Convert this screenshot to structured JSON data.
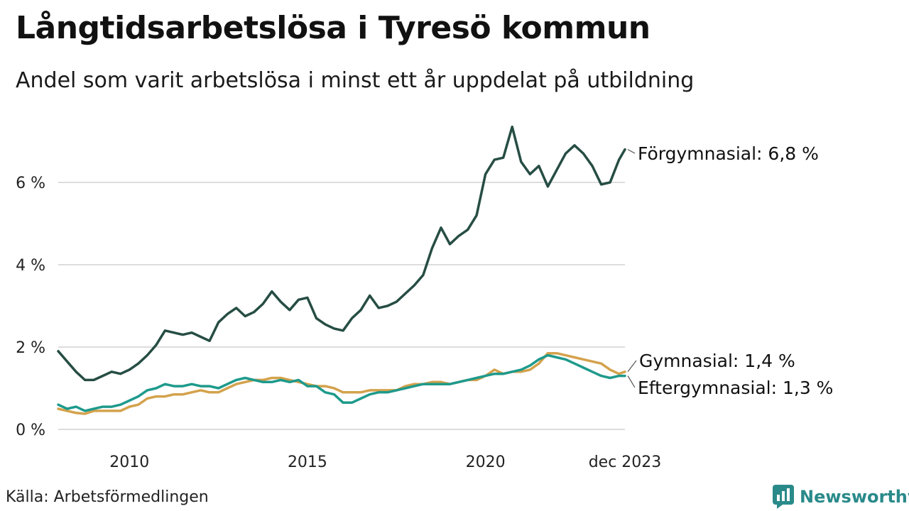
{
  "title": "Långtidsarbetslösa i Tyresö kommun",
  "subtitle": "Andel som varit arbetslösa i minst ett år uppdelat på utbildning",
  "source": "Källa: Arbetsförmedlingen",
  "brand": "Newsworthy",
  "colors": {
    "forgymnasial": "#264d44",
    "gymnasial": "#d4a24c",
    "eftergymnasial": "#1e9a8c",
    "grid": "#dddddd",
    "brand": "#2a8a8a"
  },
  "chart_data": {
    "type": "line",
    "title": "Långtidsarbetslösa i Tyresö kommun",
    "xlabel": "",
    "ylabel": "",
    "xlim": [
      2008.0,
      2023.917
    ],
    "ylim": [
      0,
      7.5
    ],
    "yticks": [
      {
        "value": 0,
        "label": "0 %"
      },
      {
        "value": 2,
        "label": "2 %"
      },
      {
        "value": 4,
        "label": "4 %"
      },
      {
        "value": 6,
        "label": "6 %"
      }
    ],
    "xticks": [
      {
        "value": 2010,
        "label": "2010"
      },
      {
        "value": 2015,
        "label": "2015"
      },
      {
        "value": 2020,
        "label": "2020"
      },
      {
        "value": 2023.917,
        "label": "dec 2023"
      }
    ],
    "series": [
      {
        "name": "Förgymnasial",
        "label": "Förgymnasial: 6,8 %",
        "color_key": "forgymnasial",
        "points": [
          [
            2008.0,
            1.9
          ],
          [
            2008.25,
            1.65
          ],
          [
            2008.5,
            1.4
          ],
          [
            2008.75,
            1.2
          ],
          [
            2009.0,
            1.2
          ],
          [
            2009.25,
            1.3
          ],
          [
            2009.5,
            1.4
          ],
          [
            2009.75,
            1.35
          ],
          [
            2010.0,
            1.45
          ],
          [
            2010.25,
            1.6
          ],
          [
            2010.5,
            1.8
          ],
          [
            2010.75,
            2.05
          ],
          [
            2011.0,
            2.4
          ],
          [
            2011.25,
            2.35
          ],
          [
            2011.5,
            2.3
          ],
          [
            2011.75,
            2.35
          ],
          [
            2012.0,
            2.25
          ],
          [
            2012.25,
            2.15
          ],
          [
            2012.5,
            2.6
          ],
          [
            2012.75,
            2.8
          ],
          [
            2013.0,
            2.95
          ],
          [
            2013.25,
            2.75
          ],
          [
            2013.5,
            2.85
          ],
          [
            2013.75,
            3.05
          ],
          [
            2014.0,
            3.35
          ],
          [
            2014.25,
            3.1
          ],
          [
            2014.5,
            2.9
          ],
          [
            2014.75,
            3.15
          ],
          [
            2015.0,
            3.2
          ],
          [
            2015.25,
            2.7
          ],
          [
            2015.5,
            2.55
          ],
          [
            2015.75,
            2.45
          ],
          [
            2016.0,
            2.4
          ],
          [
            2016.25,
            2.7
          ],
          [
            2016.5,
            2.9
          ],
          [
            2016.75,
            3.25
          ],
          [
            2017.0,
            2.95
          ],
          [
            2017.25,
            3.0
          ],
          [
            2017.5,
            3.1
          ],
          [
            2017.75,
            3.3
          ],
          [
            2018.0,
            3.5
          ],
          [
            2018.25,
            3.75
          ],
          [
            2018.5,
            4.4
          ],
          [
            2018.75,
            4.9
          ],
          [
            2019.0,
            4.5
          ],
          [
            2019.25,
            4.7
          ],
          [
            2019.5,
            4.85
          ],
          [
            2019.75,
            5.2
          ],
          [
            2020.0,
            6.2
          ],
          [
            2020.25,
            6.55
          ],
          [
            2020.5,
            6.6
          ],
          [
            2020.75,
            7.35
          ],
          [
            2021.0,
            6.5
          ],
          [
            2021.25,
            6.2
          ],
          [
            2021.5,
            6.4
          ],
          [
            2021.75,
            5.9
          ],
          [
            2022.0,
            6.3
          ],
          [
            2022.25,
            6.7
          ],
          [
            2022.5,
            6.9
          ],
          [
            2022.75,
            6.7
          ],
          [
            2023.0,
            6.4
          ],
          [
            2023.25,
            5.95
          ],
          [
            2023.5,
            6.0
          ],
          [
            2023.75,
            6.55
          ],
          [
            2023.917,
            6.8
          ]
        ]
      },
      {
        "name": "Gymnasial",
        "label": "Gymnasial: 1,4 %",
        "color_key": "gymnasial",
        "points": [
          [
            2008.0,
            0.5
          ],
          [
            2008.25,
            0.45
          ],
          [
            2008.5,
            0.4
          ],
          [
            2008.75,
            0.38
          ],
          [
            2009.0,
            0.45
          ],
          [
            2009.25,
            0.45
          ],
          [
            2009.5,
            0.45
          ],
          [
            2009.75,
            0.45
          ],
          [
            2010.0,
            0.55
          ],
          [
            2010.25,
            0.6
          ],
          [
            2010.5,
            0.75
          ],
          [
            2010.75,
            0.8
          ],
          [
            2011.0,
            0.8
          ],
          [
            2011.25,
            0.85
          ],
          [
            2011.5,
            0.85
          ],
          [
            2011.75,
            0.9
          ],
          [
            2012.0,
            0.95
          ],
          [
            2012.25,
            0.9
          ],
          [
            2012.5,
            0.9
          ],
          [
            2012.75,
            1.0
          ],
          [
            2013.0,
            1.1
          ],
          [
            2013.25,
            1.15
          ],
          [
            2013.5,
            1.2
          ],
          [
            2013.75,
            1.2
          ],
          [
            2014.0,
            1.25
          ],
          [
            2014.25,
            1.25
          ],
          [
            2014.5,
            1.2
          ],
          [
            2014.75,
            1.15
          ],
          [
            2015.0,
            1.1
          ],
          [
            2015.25,
            1.05
          ],
          [
            2015.5,
            1.05
          ],
          [
            2015.75,
            1.0
          ],
          [
            2016.0,
            0.9
          ],
          [
            2016.25,
            0.9
          ],
          [
            2016.5,
            0.9
          ],
          [
            2016.75,
            0.95
          ],
          [
            2017.0,
            0.95
          ],
          [
            2017.25,
            0.95
          ],
          [
            2017.5,
            0.95
          ],
          [
            2017.75,
            1.05
          ],
          [
            2018.0,
            1.1
          ],
          [
            2018.25,
            1.1
          ],
          [
            2018.5,
            1.15
          ],
          [
            2018.75,
            1.15
          ],
          [
            2019.0,
            1.1
          ],
          [
            2019.25,
            1.15
          ],
          [
            2019.5,
            1.2
          ],
          [
            2019.75,
            1.2
          ],
          [
            2020.0,
            1.3
          ],
          [
            2020.25,
            1.45
          ],
          [
            2020.5,
            1.35
          ],
          [
            2020.75,
            1.4
          ],
          [
            2021.0,
            1.4
          ],
          [
            2021.25,
            1.45
          ],
          [
            2021.5,
            1.6
          ],
          [
            2021.75,
            1.85
          ],
          [
            2022.0,
            1.85
          ],
          [
            2022.25,
            1.8
          ],
          [
            2022.5,
            1.75
          ],
          [
            2022.75,
            1.7
          ],
          [
            2023.0,
            1.65
          ],
          [
            2023.25,
            1.6
          ],
          [
            2023.5,
            1.45
          ],
          [
            2023.75,
            1.35
          ],
          [
            2023.917,
            1.4
          ]
        ]
      },
      {
        "name": "Eftergymnasial",
        "label": "Eftergymnasial: 1,3 %",
        "color_key": "eftergymnasial",
        "points": [
          [
            2008.0,
            0.6
          ],
          [
            2008.25,
            0.5
          ],
          [
            2008.5,
            0.55
          ],
          [
            2008.75,
            0.45
          ],
          [
            2009.0,
            0.5
          ],
          [
            2009.25,
            0.55
          ],
          [
            2009.5,
            0.55
          ],
          [
            2009.75,
            0.6
          ],
          [
            2010.0,
            0.7
          ],
          [
            2010.25,
            0.8
          ],
          [
            2010.5,
            0.95
          ],
          [
            2010.75,
            1.0
          ],
          [
            2011.0,
            1.1
          ],
          [
            2011.25,
            1.05
          ],
          [
            2011.5,
            1.05
          ],
          [
            2011.75,
            1.1
          ],
          [
            2012.0,
            1.05
          ],
          [
            2012.25,
            1.05
          ],
          [
            2012.5,
            1.0
          ],
          [
            2012.75,
            1.1
          ],
          [
            2013.0,
            1.2
          ],
          [
            2013.25,
            1.25
          ],
          [
            2013.5,
            1.2
          ],
          [
            2013.75,
            1.15
          ],
          [
            2014.0,
            1.15
          ],
          [
            2014.25,
            1.2
          ],
          [
            2014.5,
            1.15
          ],
          [
            2014.75,
            1.2
          ],
          [
            2015.0,
            1.05
          ],
          [
            2015.25,
            1.05
          ],
          [
            2015.5,
            0.9
          ],
          [
            2015.75,
            0.85
          ],
          [
            2016.0,
            0.65
          ],
          [
            2016.25,
            0.65
          ],
          [
            2016.5,
            0.75
          ],
          [
            2016.75,
            0.85
          ],
          [
            2017.0,
            0.9
          ],
          [
            2017.25,
            0.9
          ],
          [
            2017.5,
            0.95
          ],
          [
            2017.75,
            1.0
          ],
          [
            2018.0,
            1.05
          ],
          [
            2018.25,
            1.1
          ],
          [
            2018.5,
            1.1
          ],
          [
            2018.75,
            1.1
          ],
          [
            2019.0,
            1.1
          ],
          [
            2019.25,
            1.15
          ],
          [
            2019.5,
            1.2
          ],
          [
            2019.75,
            1.25
          ],
          [
            2020.0,
            1.3
          ],
          [
            2020.25,
            1.35
          ],
          [
            2020.5,
            1.35
          ],
          [
            2020.75,
            1.4
          ],
          [
            2021.0,
            1.45
          ],
          [
            2021.25,
            1.55
          ],
          [
            2021.5,
            1.7
          ],
          [
            2021.75,
            1.8
          ],
          [
            2022.0,
            1.75
          ],
          [
            2022.25,
            1.7
          ],
          [
            2022.5,
            1.6
          ],
          [
            2022.75,
            1.5
          ],
          [
            2023.0,
            1.4
          ],
          [
            2023.25,
            1.3
          ],
          [
            2023.5,
            1.25
          ],
          [
            2023.75,
            1.3
          ],
          [
            2023.917,
            1.3
          ]
        ]
      }
    ]
  }
}
